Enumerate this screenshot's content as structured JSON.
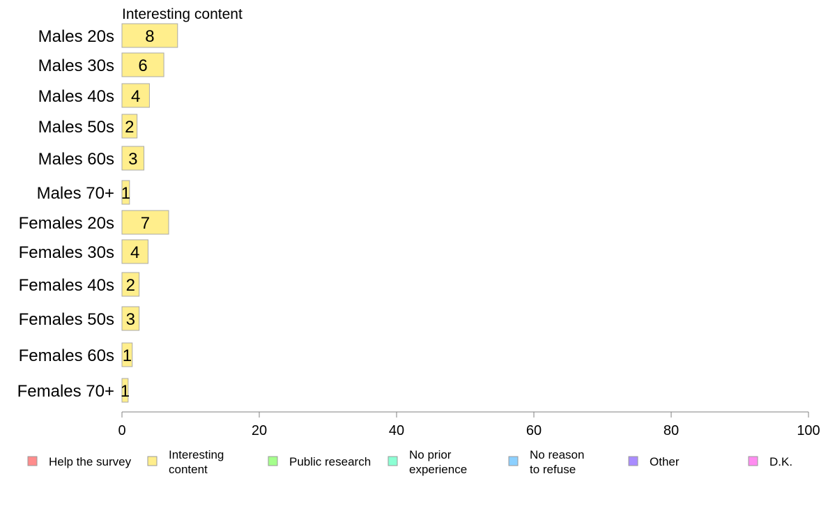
{
  "chart_data": {
    "type": "bar",
    "orientation": "horizontal",
    "panel_title": "Interesting content",
    "categories": [
      "Males 20s",
      "Males 30s",
      "Males 40s",
      "Males 50s",
      "Males 60s",
      "Males 70+",
      "Females 20s",
      "Females 30s",
      "Females 40s",
      "Females 50s",
      "Females 60s",
      "Females 70+"
    ],
    "values": [
      8.1,
      6.1,
      4.0,
      2.2,
      3.2,
      1.1,
      6.8,
      3.8,
      2.5,
      2.5,
      1.5,
      0.9
    ],
    "value_labels": [
      "8",
      "6",
      "4",
      "2",
      "3",
      "1",
      "7",
      "4",
      "2",
      "3",
      "1",
      "1"
    ],
    "xlim": [
      0,
      100
    ],
    "xticks": [
      0,
      20,
      40,
      60,
      80,
      100
    ],
    "bar_color": "#FFEE8C",
    "bar_edge_color": "#A9A9A9",
    "grid": false,
    "legend_position": "bottom",
    "legend": [
      {
        "label": [
          "Help the survey"
        ],
        "color": "#FF8C8C"
      },
      {
        "label": [
          "Interesting",
          "content"
        ],
        "color": "#FFEE8C"
      },
      {
        "label": [
          "Public research"
        ],
        "color": "#A5FF8C"
      },
      {
        "label": [
          "No prior",
          "experience"
        ],
        "color": "#8CFFD4"
      },
      {
        "label": [
          "No reason",
          "to refuse"
        ],
        "color": "#8CD0FF"
      },
      {
        "label": [
          "Other"
        ],
        "color": "#A98CFF"
      },
      {
        "label": [
          "D.K."
        ],
        "color": "#FF8CF0"
      }
    ]
  }
}
